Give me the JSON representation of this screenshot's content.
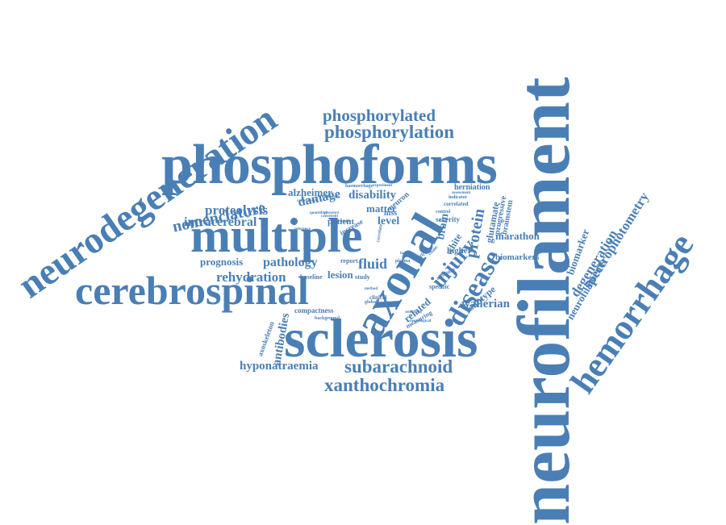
{
  "accent_color": "#4a7fb5",
  "words": {
    "neurofilament": "neurofilament",
    "phosphoforms": "phosphoforms",
    "multiple": "multiple",
    "sclerosis": "sclerosis",
    "axonal": "axonal",
    "cerebrospinal": "cerebrospinal",
    "neurodegeneration": "neurodegeneration",
    "hemorrhage": "hemorrhage",
    "phosphorylation": "phosphorylation",
    "phosphorylated": "phosphorylated",
    "subarachnoid": "subarachnoid",
    "xanthochromia": "xanthochromia",
    "hyponatraemia": "hyponatraemia",
    "disease": "disease",
    "injury": "injury",
    "nomenclature": "nomenclature",
    "proteolysis": "proteolysis",
    "intracerebral": "intracerebral",
    "rehydration": "rehydration",
    "pathology": "pathology",
    "spectrophotometry": "spectrophotometry",
    "degeneration": "degeneration",
    "neurofilaments": "neurofilaments",
    "biomarker": "biomarker",
    "protein": "protein",
    "fluid": "fluid",
    "damage": "damage",
    "disability": "disability",
    "alzheimer": "alzheimer",
    "prognosis": "prognosis",
    "antibodies": "antibodies",
    "axoskeleton": "axoskeleton",
    "compactness": "compactness",
    "wallerian": "wallerian",
    "marathon": "marathon",
    "biomarkers": "biomarkers",
    "glutamate": "glutamate",
    "brainstem": "brainstem",
    "progressive": "progressive",
    "herniation": "herniation",
    "lesion": "lesion",
    "level": "level",
    "matter": "matter",
    "patient": "patient",
    "brain": "brain",
    "white": "white",
    "related": "related",
    "subtype": "subtype",
    "higher": "higher",
    "severity": "severity",
    "mss": "mss",
    "neuron": "neuron",
    "baseline": "baseline",
    "report": "report",
    "study": "study",
    "clinical": "clinical",
    "specific": "specific",
    "measuring": "measuring",
    "correlated": "correlated",
    "indicator": "indicator",
    "control": "control",
    "increase": "increase",
    "haemorrhage": "haemorrhage",
    "experiment": "experiment",
    "fundoscopy": "fundoscopy",
    "colorimetric": "colorimetric",
    "background": "background",
    "neurological": "neurological",
    "global": "global",
    "sample": "sample",
    "death": "death",
    "chain": "chain",
    "albumin": "albumin",
    "plasma": "plasma",
    "sensitivity": "sensitivity",
    "assessment": "assessment",
    "quantified": "quantified",
    "consistent": "consistent",
    "presence": "presence",
    "reference": "reference",
    "correlate": "correlate",
    "factor": "factor",
    "method": "method"
  }
}
